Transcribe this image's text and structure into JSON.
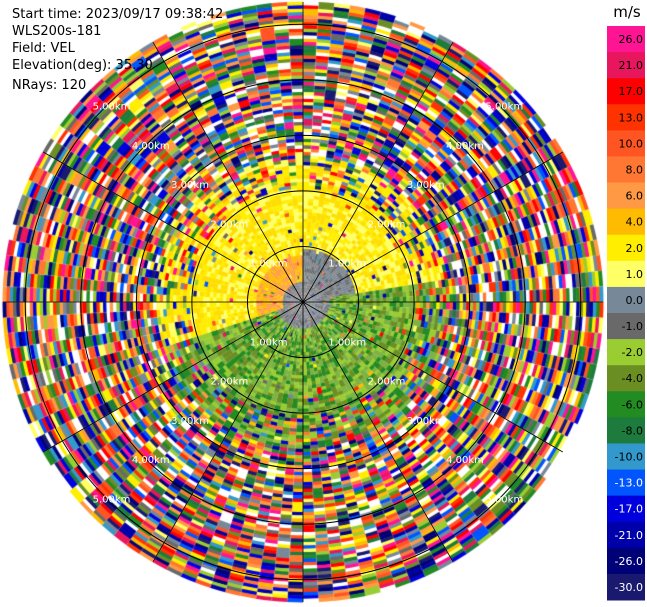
{
  "header": {
    "start_time": "Start time: 2023/09/17 09:38:42",
    "instrument": "WLS200s-181",
    "field": "Field: VEL",
    "elevation": "Elevation(deg): 35.30",
    "nrays": "NRays: 120"
  },
  "chart_data": {
    "type": "heatmap",
    "subtype": "polar-ppi",
    "field": "VEL",
    "unit": "m/s",
    "nrays": 120,
    "range_rings_km": [
      1.0,
      2.0,
      3.0,
      4.0,
      5.0
    ],
    "range_ring_labels": [
      "1.00km",
      "2.00km",
      "3.00km",
      "4.00km",
      "5.00km"
    ],
    "max_range_km": 5.4,
    "colorbar": {
      "unit_label": "m/s",
      "ticks": [
        "26.0",
        "21.0",
        "17.0",
        "13.0",
        "10.0",
        "8.0",
        "6.0",
        "4.0",
        "2.0",
        "1.0",
        "0.0",
        "-1.0",
        "-2.0",
        "-4.0",
        "-6.0",
        "-8.0",
        "-10.0",
        "-13.0",
        "-17.0",
        "-21.0",
        "-26.0",
        "-30.0"
      ],
      "colors": [
        "#ff1493",
        "#e8175d",
        "#ff0000",
        "#ff3300",
        "#ff5522",
        "#ff7733",
        "#ff9944",
        "#ffbb00",
        "#ffee00",
        "#ffff66",
        "#778899",
        "#696969",
        "#9acd32",
        "#6b8e23",
        "#228b22",
        "#1e7b3e",
        "#3399cc",
        "#0055ff",
        "#0000dd",
        "#0000aa",
        "#000077",
        "#191970"
      ]
    },
    "inner_region": {
      "yellow_ring_km": [
        1.0,
        2.0
      ],
      "orange_band_km": [
        0.5,
        1.0
      ],
      "gray_band_km": [
        0.4,
        1.0
      ],
      "green_band_km": [
        0.4,
        2.0
      ]
    }
  }
}
